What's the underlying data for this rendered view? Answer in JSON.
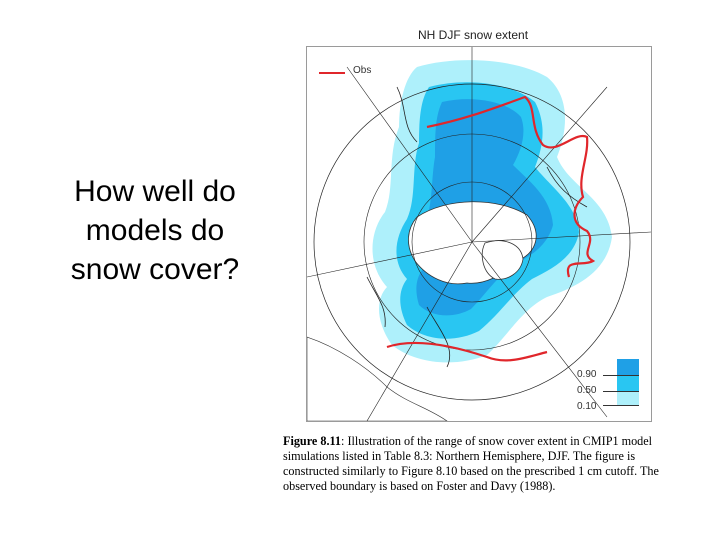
{
  "slide": {
    "question_lines": [
      "How well do",
      "models do",
      "snow cover?"
    ]
  },
  "figure": {
    "map_title": "NH DJF snow extent",
    "legend": {
      "obs_label": "Obs",
      "obs_color": "#e0262b"
    },
    "scale": {
      "labels": [
        "0.90",
        "0.50",
        "0.10"
      ],
      "colors": [
        "#1fa0e6",
        "#29c6f2",
        "#aef0fb"
      ]
    },
    "caption": {
      "label": "Figure 8.11",
      "text": ": Illustration of the range of snow cover extent in CMIP1 model simulations listed in Table 8.3: Northern Hemisphere, DJF. The figure is constructed similarly to Figure 8.10 based on the prescribed 1 cm cutoff. The observed boundary is based on Foster and Davy (1988)."
    }
  }
}
